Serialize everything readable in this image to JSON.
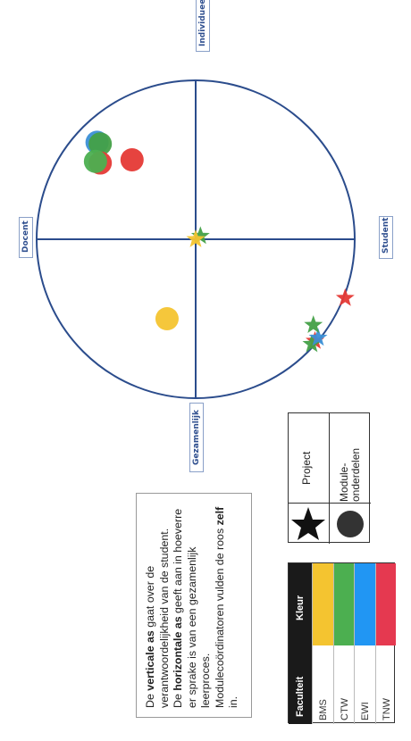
{
  "axes": {
    "top": "Individueel",
    "left": "Docent",
    "right": "Student",
    "bottom": "Gezamenlijk"
  },
  "points": [
    {
      "shape": "circle",
      "color": "#3b8fd6",
      "x": -0.62,
      "y": 0.61
    },
    {
      "shape": "circle",
      "color": "#43a047",
      "x": -0.6,
      "y": 0.6
    },
    {
      "shape": "circle",
      "color": "#e53935",
      "x": -0.6,
      "y": 0.48
    },
    {
      "shape": "circle",
      "color": "#4caf50",
      "x": -0.63,
      "y": 0.49
    },
    {
      "shape": "circle",
      "color": "#e53935",
      "x": -0.4,
      "y": 0.5
    },
    {
      "shape": "circle",
      "color": "#f4c430",
      "x": -0.18,
      "y": -0.5
    },
    {
      "shape": "star",
      "color": "#43a047",
      "x": 0.03,
      "y": 0.02
    },
    {
      "shape": "star",
      "color": "#f4c430",
      "x": 0.0,
      "y": 0.0
    },
    {
      "shape": "star",
      "color": "#e53935",
      "x": 0.75,
      "y": -0.64
    },
    {
      "shape": "star",
      "color": "#43a047",
      "x": 0.73,
      "y": -0.66
    },
    {
      "shape": "star",
      "color": "#3b8fd6",
      "x": 0.77,
      "y": -0.62
    },
    {
      "shape": "star",
      "color": "#43a047",
      "x": 0.74,
      "y": -0.54
    },
    {
      "shape": "star",
      "color": "#e53935",
      "x": 0.94,
      "y": -0.37
    }
  ],
  "explanation": {
    "l1_a": "De ",
    "l1_b": "verticale as",
    "l1_c": " gaat over de verantwoordelijkheid van de student.",
    "l2_a": "De ",
    "l2_b": "horizontale as",
    "l2_c": " geeft aan in hoeverre er sprake is van een gezamenlijk leerproces.",
    "l3_a": "Modulecoördinatoren vulden de roos ",
    "l3_b": "zelf",
    "l3_c": " in."
  },
  "shape_legend": {
    "project": "Project",
    "module": "Module-onderdelen"
  },
  "faculty_legend": {
    "header_faculty": "Faculteit",
    "header_color": "Kleur",
    "rows": [
      {
        "name": "BMS",
        "color": "#f4c430"
      },
      {
        "name": "CTW",
        "color": "#4caf50"
      },
      {
        "name": "EWI",
        "color": "#2196f3"
      },
      {
        "name": "TNW",
        "color": "#e53950"
      }
    ]
  }
}
